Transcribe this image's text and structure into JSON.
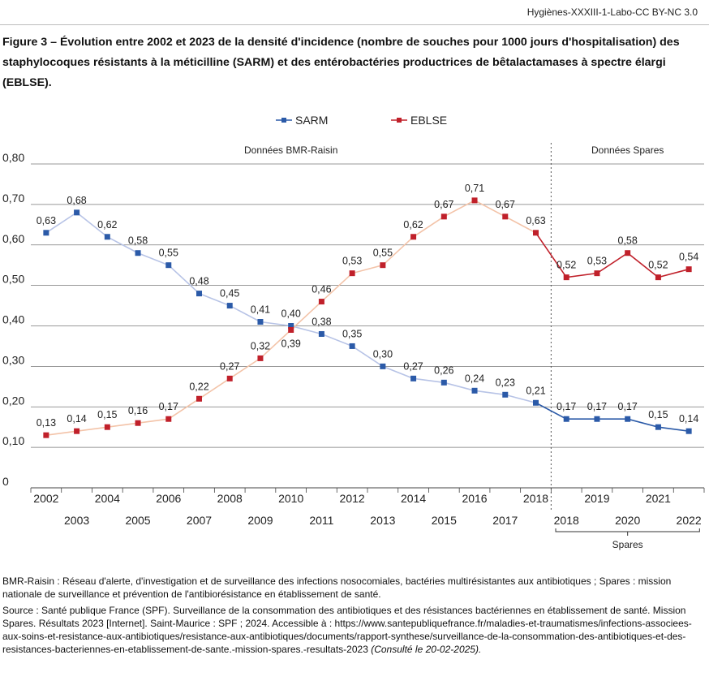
{
  "header": {
    "source_tag": "Hygiènes-XXXIII-1-Labo-CC BY-NC 3.0"
  },
  "figure": {
    "title": "Figure 3 – Évolution entre 2002 et 2023 de la densité d'incidence (nombre de souches pour 1000 jours d'hospitalisation) des staphylocoques résistants à la méticilline (SARM) et des entérobactéries productrices de bêtalactamases à spectre élargi (EBLSE)."
  },
  "chart_data": {
    "type": "line",
    "title": "",
    "xlabel": "",
    "ylabel": "",
    "ylim": [
      0,
      0.8
    ],
    "yticks": [
      {
        "v": 0,
        "label": "0"
      },
      {
        "v": 0.1,
        "label": "0,10"
      },
      {
        "v": 0.2,
        "label": "0,20"
      },
      {
        "v": 0.3,
        "label": "0,30"
      },
      {
        "v": 0.4,
        "label": "0,40"
      },
      {
        "v": 0.5,
        "label": "0,50"
      },
      {
        "v": 0.6,
        "label": "0,60"
      },
      {
        "v": 0.7,
        "label": "0,70"
      },
      {
        "v": 0.8,
        "label": "0,80"
      }
    ],
    "categories": [
      "2002",
      "2003",
      "2004",
      "2005",
      "2006",
      "2007",
      "2008",
      "2009",
      "2010",
      "2011",
      "2012",
      "2013",
      "2014",
      "2015",
      "2016",
      "2017",
      "2018",
      "2018",
      "2019",
      "2020",
      "2021",
      "2022"
    ],
    "period_split_after_index": 16,
    "periods": [
      {
        "label": "Données BMR-Raisin",
        "from": 0,
        "to": 16
      },
      {
        "label": "Données Spares",
        "from": 17,
        "to": 21
      }
    ],
    "spares_group_label": "Spares",
    "legend": [
      {
        "name": "SARM",
        "color": "#2b5aa8"
      },
      {
        "name": "EBLSE",
        "color": "#c0202a"
      }
    ],
    "series": [
      {
        "name": "SARM",
        "color_dark": "#2b5aa8",
        "color_light": "#b7c3e6",
        "values": [
          0.63,
          0.68,
          0.62,
          0.58,
          0.55,
          0.48,
          0.45,
          0.41,
          0.4,
          0.38,
          0.35,
          0.3,
          0.27,
          0.26,
          0.24,
          0.23,
          0.21,
          0.17,
          0.17,
          0.17,
          0.15,
          0.14
        ],
        "labels": [
          "0,63",
          "0,68",
          "0,62",
          "0,58",
          "0,55",
          "0,48",
          "0,45",
          "0,41",
          "0,40",
          "0,38",
          "0,35",
          "0,30",
          "0,27",
          "0,26",
          "0,24",
          "0,23",
          "0,21",
          "0,17",
          "0,17",
          "0,17",
          "0,15",
          "0,14"
        ]
      },
      {
        "name": "EBLSE",
        "color_dark": "#c0202a",
        "color_light": "#f3c3a8",
        "values": [
          0.13,
          0.14,
          0.15,
          0.16,
          0.17,
          0.22,
          0.27,
          0.32,
          0.39,
          0.46,
          0.53,
          0.55,
          0.62,
          0.67,
          0.71,
          0.67,
          0.63,
          0.52,
          0.53,
          0.58,
          0.52,
          0.54
        ],
        "labels": [
          "0,13",
          "0,14",
          "0,15",
          "0,16",
          "0,17",
          "0,22",
          "0,27",
          "0,32",
          "0,39",
          "0,46",
          "0,53",
          "0,55",
          "0,62",
          "0,67",
          "0,71",
          "0,67",
          "0,63",
          "0,52",
          "0,53",
          "0,58",
          "0,52",
          "0,54"
        ]
      }
    ]
  },
  "notes": {
    "bmr": "BMR-Raisin : Réseau d'alerte, d'investigation et de surveillance des infections nosocomiales, bactéries multirésistantes aux antibiotiques ; Spares : mission nationale de surveillance et prévention de l'antibiorésistance en établissement de santé.",
    "source": "Source : Santé publique France (SPF). Surveillance de la consommation des antibiotiques et des résistances bactériennes en établissement de santé. Mission Spares. Résultats 2023 [Internet]. Saint-Maurice : SPF ; 2024. Accessible à : https://www.santepubliquefrance.fr/maladies-et-traumatismes/infections-associees-aux-soins-et-resistance-aux-antibiotiques/resistance-aux-antibiotiques/documents/rapport-synthese/surveillance-de-la-consommation-des-antibiotiques-et-des-resistances-bacteriennes-en-etablissement-de-sante.-mission-spares.-resultats-2023",
    "consulted": "(Consulté le 20-02-2025)."
  }
}
